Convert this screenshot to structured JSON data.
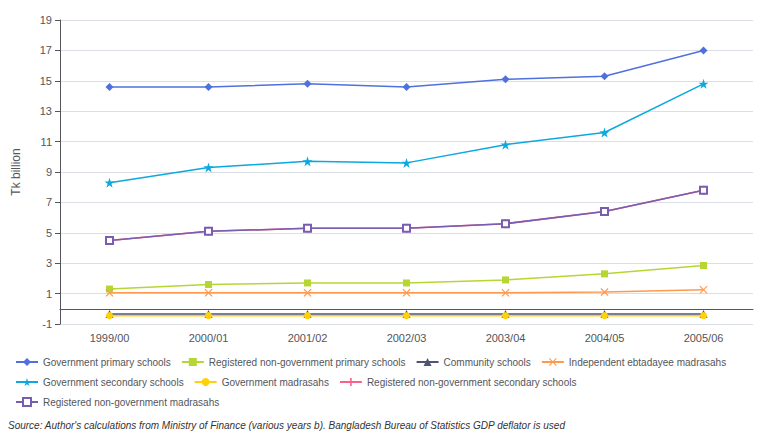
{
  "chart_data": {
    "type": "line",
    "categories": [
      "1999/00",
      "2000/01",
      "2001/02",
      "2002/03",
      "2003/04",
      "2004/05",
      "2005/06"
    ],
    "series": [
      {
        "name": "Government primary schools",
        "values": [
          14.6,
          14.6,
          14.8,
          14.6,
          15.1,
          15.3,
          17.0
        ],
        "marker": "diamond"
      },
      {
        "name": "Registered non-government primary schools",
        "values": [
          1.3,
          1.6,
          1.7,
          1.7,
          1.9,
          2.3,
          2.85
        ],
        "marker": "square"
      },
      {
        "name": "Community schools",
        "values": [
          -0.35,
          -0.35,
          -0.35,
          -0.35,
          -0.35,
          -0.35,
          -0.35
        ],
        "marker": "triangle"
      },
      {
        "name": "Independent ebtadayee madrasahs",
        "values": [
          1.05,
          1.05,
          1.05,
          1.05,
          1.05,
          1.1,
          1.25
        ],
        "marker": "x"
      },
      {
        "name": "Government secondary schools",
        "values": [
          8.3,
          9.3,
          9.7,
          9.6,
          10.8,
          11.6,
          14.8
        ],
        "marker": "star"
      },
      {
        "name": "Government madrasahs",
        "values": [
          -0.45,
          -0.45,
          -0.45,
          -0.45,
          -0.45,
          -0.45,
          -0.45
        ],
        "marker": "circle"
      },
      {
        "name": "Registered non-government secondary schools",
        "values": [
          4.5,
          5.1,
          5.3,
          5.3,
          5.6,
          6.4,
          7.8
        ],
        "marker": "plus"
      },
      {
        "name": "Registered non-government madrasahs",
        "values": [
          4.5,
          5.1,
          5.3,
          5.3,
          5.6,
          6.4,
          7.8
        ],
        "marker": "open_square"
      }
    ],
    "y_label": "Tk billion",
    "ylim": [
      -1,
      19
    ],
    "yticks": [
      -1,
      1,
      3,
      5,
      7,
      9,
      11,
      13,
      15,
      17,
      19
    ],
    "grid": true,
    "legend": "bottom",
    "annotation": "Source: Author's calculations from Ministry of Finance (various years b). Bangladesh Bureau of Statistics GDP deflator is used"
  }
}
